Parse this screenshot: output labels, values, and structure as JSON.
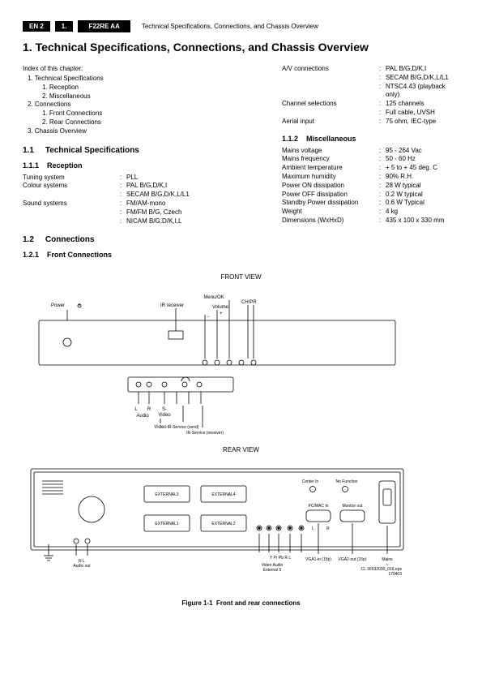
{
  "header": {
    "code_left": "EN 2",
    "code_mid": "1.",
    "code_right": "F22RE AA",
    "title": "Technical Specifications, Connections, and Chassis Overview"
  },
  "main_title": "1.   Technical Specifications, Connections, and Chassis Overview",
  "index": {
    "title": "Index of this chapter:",
    "items": [
      "1.   Technical Specifications",
      "1.   Reception",
      "2.   Miscellaneous",
      "2.   Connections",
      "1.   Front Connections",
      "2.   Rear Connections",
      "3.   Chassis Overview"
    ]
  },
  "sec11": {
    "num": "1.1",
    "title": "Technical Specifications"
  },
  "sec111": {
    "num": "1.1.1",
    "title": "Reception"
  },
  "reception": [
    {
      "label": "Tuning system",
      "value": "PLL"
    },
    {
      "label": "Colour systems",
      "value": "PAL B/G,D/K,I"
    },
    {
      "label": "",
      "value": "SECAM B/G,D/K,L/L1"
    },
    {
      "label": "Sound systems",
      "value": "FM/AM-mono"
    },
    {
      "label": "",
      "value": "FM/FM B/G, Czech"
    },
    {
      "label": "",
      "value": "NICAM B/G,D/K,I,L"
    }
  ],
  "right_upper": [
    {
      "label": "A/V connections",
      "value": "PAL B/G,D/K,I"
    },
    {
      "label": "",
      "value": "SECAM B/G,D/K,L/L1"
    },
    {
      "label": "",
      "value": "NTSC4.43 (playback only)"
    },
    {
      "label": "Channel selections",
      "value": "125 channels"
    },
    {
      "label": "",
      "value": "Full cable, UVSH"
    },
    {
      "label": "Aerial input",
      "value": "75 ohm, IEC-type"
    }
  ],
  "sec112": {
    "num": "1.1.2",
    "title": "Miscellaneous"
  },
  "misc": [
    {
      "label": "Mains voltage",
      "value": "95 - 264 Vac"
    },
    {
      "label": "Mains frequency",
      "value": "50 - 60 Hz"
    },
    {
      "label": "Ambient temperature",
      "value": "+ 5 to + 45 deg. C"
    },
    {
      "label": "Maximum humidity",
      "value": "90% R.H."
    },
    {
      "label": "Power ON dissipation",
      "value": "28 W typical"
    },
    {
      "label": "Power OFF dissipation",
      "value": "0.2 W typical"
    },
    {
      "label": "Standby Power dissipation",
      "value": "0.6 W Typical"
    },
    {
      "label": "Weight",
      "value": "4 kg"
    },
    {
      "label": "Dimensions (WxHxD)",
      "value": "435 x 100 x 330 mm"
    }
  ],
  "sec12": {
    "num": "1.2",
    "title": "Connections"
  },
  "sec121": {
    "num": "1.2.1",
    "title": "Front Connections"
  },
  "diagram": {
    "front_title": "FRONT VIEW",
    "rear_title": "REAR VIEW",
    "caption_prefix": "Figure 1-1",
    "caption": "Front and rear connections",
    "front": {
      "labels": {
        "power": "Power",
        "ir_receiver": "IR receiver",
        "menu_ok": "Menu/OK",
        "volume": "Volume",
        "ch_pr": "CH/PR",
        "plus": "+",
        "minus": "−",
        "L": "L",
        "R": "R",
        "audio": "Audio",
        "s": "S-",
        "video_dash": "Video",
        "headphone": "",
        "video": "Video",
        "ir_send": "IR-Service (send)",
        "ir_recv": "IR-Service (receiver)"
      }
    },
    "rear": {
      "labels": {
        "ext1": "EXTERNAL1",
        "ext2": "EXTERNAL2",
        "ext3": "EXTERNAL3",
        "ext4": "EXTERNAL4",
        "center_in": "Center In",
        "no_func": "No Function",
        "pcmac": "PC/MAC In",
        "monitor": "Monitor out",
        "L": "L",
        "R": "R",
        "RL_audio": "R    L\nAudio out",
        "yprpb": "Y    Pr  Pb  R    L",
        "video_ext5": "Video        Audio\nExternal 5",
        "vga1": "VGA1-in (15p)",
        "vga2": "VGA2-out (15p)",
        "mains": "Mains",
        "tilde": "~",
        "file": "CL 36532030_016.eps\n170403"
      }
    },
    "style": {
      "stroke": "#000000",
      "fill_none": "none",
      "font_family": "Arial",
      "font_size_small": 6,
      "font_size_tiny": 5,
      "conn_circle_r": 3,
      "conn_circle_r_small": 2.2,
      "line_w": 0.8
    }
  }
}
